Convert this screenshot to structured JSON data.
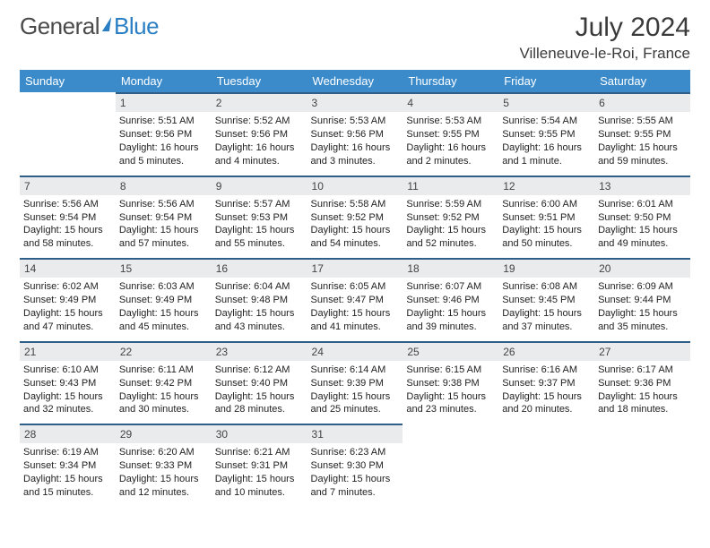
{
  "brand": {
    "part1": "General",
    "part2": "Blue"
  },
  "title": "July 2024",
  "location": "Villeneuve-le-Roi, France",
  "colors": {
    "header_bg": "#3b8bcb",
    "header_text": "#ffffff",
    "day_bg": "#e9ebec",
    "day_border": "#2f5e88",
    "body_text": "#222222"
  },
  "weekdays": [
    "Sunday",
    "Monday",
    "Tuesday",
    "Wednesday",
    "Thursday",
    "Friday",
    "Saturday"
  ],
  "start_offset": 1,
  "days": [
    {
      "n": 1,
      "sunrise": "5:51 AM",
      "sunset": "9:56 PM",
      "daylight": "16 hours and 5 minutes."
    },
    {
      "n": 2,
      "sunrise": "5:52 AM",
      "sunset": "9:56 PM",
      "daylight": "16 hours and 4 minutes."
    },
    {
      "n": 3,
      "sunrise": "5:53 AM",
      "sunset": "9:56 PM",
      "daylight": "16 hours and 3 minutes."
    },
    {
      "n": 4,
      "sunrise": "5:53 AM",
      "sunset": "9:55 PM",
      "daylight": "16 hours and 2 minutes."
    },
    {
      "n": 5,
      "sunrise": "5:54 AM",
      "sunset": "9:55 PM",
      "daylight": "16 hours and 1 minute."
    },
    {
      "n": 6,
      "sunrise": "5:55 AM",
      "sunset": "9:55 PM",
      "daylight": "15 hours and 59 minutes."
    },
    {
      "n": 7,
      "sunrise": "5:56 AM",
      "sunset": "9:54 PM",
      "daylight": "15 hours and 58 minutes."
    },
    {
      "n": 8,
      "sunrise": "5:56 AM",
      "sunset": "9:54 PM",
      "daylight": "15 hours and 57 minutes."
    },
    {
      "n": 9,
      "sunrise": "5:57 AM",
      "sunset": "9:53 PM",
      "daylight": "15 hours and 55 minutes."
    },
    {
      "n": 10,
      "sunrise": "5:58 AM",
      "sunset": "9:52 PM",
      "daylight": "15 hours and 54 minutes."
    },
    {
      "n": 11,
      "sunrise": "5:59 AM",
      "sunset": "9:52 PM",
      "daylight": "15 hours and 52 minutes."
    },
    {
      "n": 12,
      "sunrise": "6:00 AM",
      "sunset": "9:51 PM",
      "daylight": "15 hours and 50 minutes."
    },
    {
      "n": 13,
      "sunrise": "6:01 AM",
      "sunset": "9:50 PM",
      "daylight": "15 hours and 49 minutes."
    },
    {
      "n": 14,
      "sunrise": "6:02 AM",
      "sunset": "9:49 PM",
      "daylight": "15 hours and 47 minutes."
    },
    {
      "n": 15,
      "sunrise": "6:03 AM",
      "sunset": "9:49 PM",
      "daylight": "15 hours and 45 minutes."
    },
    {
      "n": 16,
      "sunrise": "6:04 AM",
      "sunset": "9:48 PM",
      "daylight": "15 hours and 43 minutes."
    },
    {
      "n": 17,
      "sunrise": "6:05 AM",
      "sunset": "9:47 PM",
      "daylight": "15 hours and 41 minutes."
    },
    {
      "n": 18,
      "sunrise": "6:07 AM",
      "sunset": "9:46 PM",
      "daylight": "15 hours and 39 minutes."
    },
    {
      "n": 19,
      "sunrise": "6:08 AM",
      "sunset": "9:45 PM",
      "daylight": "15 hours and 37 minutes."
    },
    {
      "n": 20,
      "sunrise": "6:09 AM",
      "sunset": "9:44 PM",
      "daylight": "15 hours and 35 minutes."
    },
    {
      "n": 21,
      "sunrise": "6:10 AM",
      "sunset": "9:43 PM",
      "daylight": "15 hours and 32 minutes."
    },
    {
      "n": 22,
      "sunrise": "6:11 AM",
      "sunset": "9:42 PM",
      "daylight": "15 hours and 30 minutes."
    },
    {
      "n": 23,
      "sunrise": "6:12 AM",
      "sunset": "9:40 PM",
      "daylight": "15 hours and 28 minutes."
    },
    {
      "n": 24,
      "sunrise": "6:14 AM",
      "sunset": "9:39 PM",
      "daylight": "15 hours and 25 minutes."
    },
    {
      "n": 25,
      "sunrise": "6:15 AM",
      "sunset": "9:38 PM",
      "daylight": "15 hours and 23 minutes."
    },
    {
      "n": 26,
      "sunrise": "6:16 AM",
      "sunset": "9:37 PM",
      "daylight": "15 hours and 20 minutes."
    },
    {
      "n": 27,
      "sunrise": "6:17 AM",
      "sunset": "9:36 PM",
      "daylight": "15 hours and 18 minutes."
    },
    {
      "n": 28,
      "sunrise": "6:19 AM",
      "sunset": "9:34 PM",
      "daylight": "15 hours and 15 minutes."
    },
    {
      "n": 29,
      "sunrise": "6:20 AM",
      "sunset": "9:33 PM",
      "daylight": "15 hours and 12 minutes."
    },
    {
      "n": 30,
      "sunrise": "6:21 AM",
      "sunset": "9:31 PM",
      "daylight": "15 hours and 10 minutes."
    },
    {
      "n": 31,
      "sunrise": "6:23 AM",
      "sunset": "9:30 PM",
      "daylight": "15 hours and 7 minutes."
    }
  ],
  "labels": {
    "sunrise": "Sunrise: ",
    "sunset": "Sunset: ",
    "daylight": "Daylight: "
  }
}
